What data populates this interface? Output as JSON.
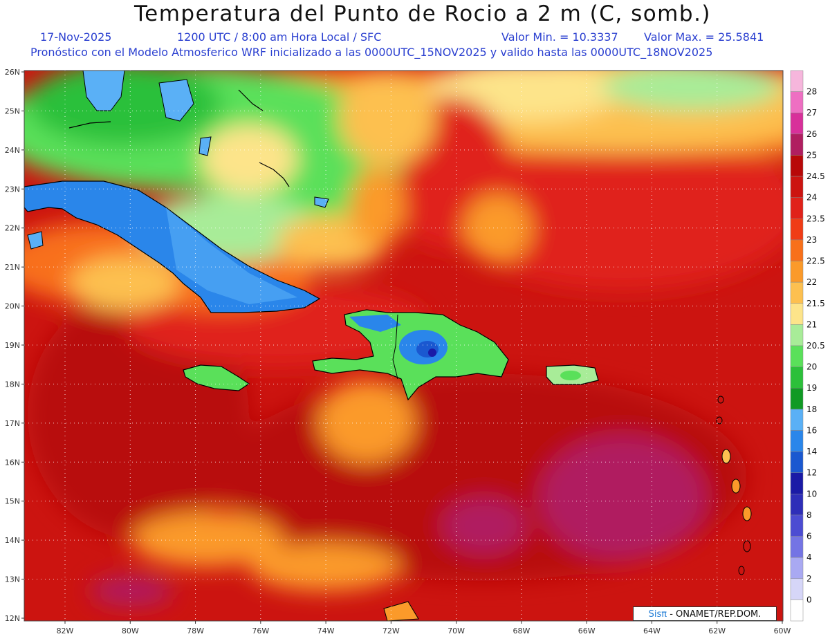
{
  "header": {
    "title": "Temperatura del Punto de Rocio a 2 m (C, somb.)",
    "date": "17-Nov-2025",
    "time": "1200 UTC / 8:00 am Hora Local / SFC",
    "min_label": "Valor Min. = 10.3337",
    "max_label": "Valor Max. = 25.5841",
    "model_line": "Pronóstico con el Modelo Atmosferico WRF inicializado a las 0000UTC_15NOV2025 y valido hasta las  0000UTC_18NOV2025"
  },
  "map": {
    "lat_labels": [
      "26N",
      "25N",
      "24N",
      "23N",
      "22N",
      "21N",
      "20N",
      "19N",
      "18N",
      "17N",
      "16N",
      "15N",
      "14N",
      "13N",
      "12N"
    ],
    "lon_labels": [
      "82W",
      "80W",
      "78W",
      "76W",
      "74W",
      "72W",
      "70W",
      "68W",
      "66W",
      "64W",
      "62W",
      "60W"
    ]
  },
  "legend": {
    "levels": [
      {
        "label": "28",
        "color": "#f6b6dc"
      },
      {
        "label": "27",
        "color": "#ee6fc2"
      },
      {
        "label": "26",
        "color": "#d8309a"
      },
      {
        "label": "25",
        "color": "#b01e60"
      },
      {
        "label": "24.5",
        "color": "#b80808"
      },
      {
        "label": "24",
        "color": "#cc1410"
      },
      {
        "label": "23.5",
        "color": "#e0221a"
      },
      {
        "label": "23",
        "color": "#f03c16"
      },
      {
        "label": "22.5",
        "color": "#f8701a"
      },
      {
        "label": "22",
        "color": "#fb9a2a"
      },
      {
        "label": "21.5",
        "color": "#fdc050"
      },
      {
        "label": "21",
        "color": "#fde48a"
      },
      {
        "label": "20.5",
        "color": "#a8ec98"
      },
      {
        "label": "20",
        "color": "#5ae05a"
      },
      {
        "label": "19",
        "color": "#2cc03a"
      },
      {
        "label": "18",
        "color": "#109a24"
      },
      {
        "label": "16",
        "color": "#5ab0f6"
      },
      {
        "label": "14",
        "color": "#2a86ea"
      },
      {
        "label": "12",
        "color": "#1a58d0"
      },
      {
        "label": "10",
        "color": "#1a1aa6"
      },
      {
        "label": "8",
        "color": "#2e2eb8"
      },
      {
        "label": "6",
        "color": "#4c4cd2"
      },
      {
        "label": "4",
        "color": "#7474e4"
      },
      {
        "label": "2",
        "color": "#a9a9f2"
      },
      {
        "label": "0",
        "color": "#d6d6f8"
      },
      {
        "label": "",
        "color": "#ffffff"
      }
    ]
  },
  "credit": {
    "brand": "Sisπ",
    "text": " - ONAMET/REP.DOM."
  }
}
